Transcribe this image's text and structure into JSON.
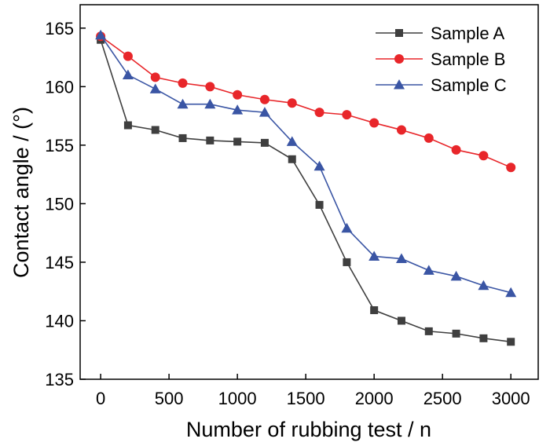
{
  "chart_data": {
    "type": "line",
    "title": "",
    "xlabel": "Number of rubbing test / n",
    "ylabel": "Contact angle / (°)",
    "xlim": [
      -150,
      3200
    ],
    "ylim": [
      135,
      167
    ],
    "xticks": [
      0,
      500,
      1000,
      1500,
      2000,
      2500,
      3000
    ],
    "yticks": [
      135,
      140,
      145,
      150,
      155,
      160,
      165
    ],
    "grid": false,
    "legend_position": "top-right",
    "x": [
      0,
      200,
      400,
      600,
      800,
      1000,
      1200,
      1400,
      1600,
      1800,
      2000,
      2200,
      2400,
      2600,
      2800,
      3000
    ],
    "series": [
      {
        "name": "Sample A",
        "color": "#3f3f3f",
        "marker": "square",
        "values": [
          164.0,
          156.7,
          156.3,
          155.6,
          155.4,
          155.3,
          155.2,
          153.8,
          149.9,
          145.0,
          140.9,
          140.0,
          139.1,
          138.9,
          138.5,
          138.2
        ]
      },
      {
        "name": "Sample B",
        "color": "#e8262a",
        "marker": "circle",
        "values": [
          164.3,
          162.6,
          160.8,
          160.3,
          160.0,
          159.3,
          158.9,
          158.6,
          157.8,
          157.6,
          156.9,
          156.3,
          155.6,
          154.6,
          154.1,
          153.1
        ]
      },
      {
        "name": "Sample C",
        "color": "#3a55a4",
        "marker": "triangle",
        "values": [
          164.4,
          161.0,
          159.8,
          158.5,
          158.5,
          158.0,
          157.8,
          155.3,
          153.2,
          147.9,
          145.5,
          145.3,
          144.3,
          143.8,
          143.0,
          142.4
        ]
      }
    ]
  }
}
